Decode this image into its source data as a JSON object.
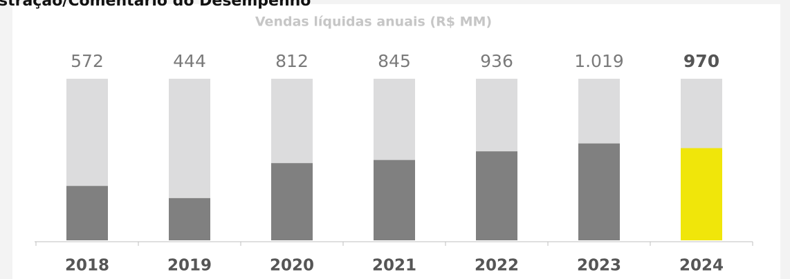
{
  "header": {
    "title": "stração/Comentário do Desempenho"
  },
  "chart_data": {
    "type": "bar",
    "title": "Vendas líquidas anuais (R$ MM)",
    "categories": [
      "2018",
      "2019",
      "2020",
      "2021",
      "2022",
      "2023",
      "2024"
    ],
    "values": [
      572,
      444,
      812,
      845,
      936,
      1019,
      970
    ],
    "value_labels": [
      "572",
      "444",
      "812",
      "845",
      "936",
      "1.019",
      "970"
    ],
    "color": "#808080",
    "colors": [
      "#808080",
      "#808080",
      "#808080",
      "#808080",
      "#808080",
      "#808080",
      "#f0e60a"
    ],
    "track_color": "#dcdcdd",
    "ylim": [
      0,
      1700
    ]
  }
}
